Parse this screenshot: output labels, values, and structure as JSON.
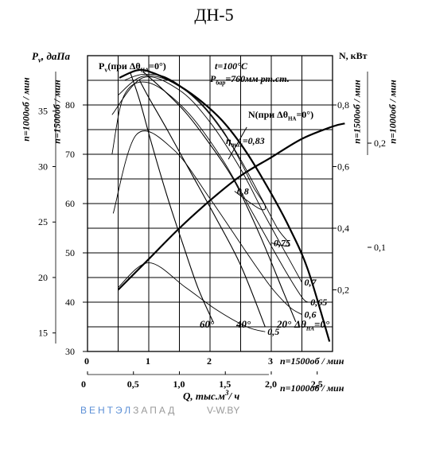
{
  "title": "ДН-5",
  "axes": {
    "pv_label": "P",
    "pv_sub": "v",
    "pv_unit": ", даПа",
    "pv_1000_label": "n=1000об / мин",
    "pv_1500_label": "n=1500об / мин",
    "n_label": "N, кВт",
    "n_1500_label": "n=1500об / мин",
    "n_1000_label": "n=1000об / мин",
    "q_label": "Q, тыс.м",
    "q_unit_sup": "3",
    "q_unit_rest": "/ ч",
    "x_1500_label": "n=1500об / мин",
    "x_1000_label": "n=1000об / мин"
  },
  "annotations": {
    "temp": "t=100°C",
    "pbar_pre": "P",
    "pbar_sub": "бар",
    "pbar_rest": "=760мм рт.ст.",
    "pv_curve_pre": "P",
    "pv_curve_sub": "v",
    "pv_curve_rest": "(при Δθ",
    "pv_curve_sub2": "НА",
    "pv_curve_end": "=0°)",
    "n_curve_pre": "N(при Δθ",
    "n_curve_sub": "НА",
    "n_curve_end": "=0°)",
    "eta_pre": "η",
    "eta_sub": "max",
    "eta_rest": "=0,83",
    "angle_60": "60°",
    "angle_40": "40°",
    "angle_20": "20°",
    "angle_0_pre": "Δθ",
    "angle_0_sub": "НА",
    "angle_0_rest": "=0°"
  },
  "watermark": {
    "brand_blue": "ВЕНТЭЛ",
    "brand_gray": "ЗАПАД",
    "site": "V-W.BY"
  },
  "colors": {
    "ink": "#000000",
    "watermark_blue": "#5b8fd6",
    "watermark_gray": "#9a9a9a"
  },
  "chart_data": {
    "type": "line",
    "title": "ДН-5",
    "x_axes": [
      {
        "label": "n=1500об / мин",
        "range": [
          0,
          4
        ],
        "ticks": [
          0,
          1,
          2,
          3,
          4
        ],
        "tick_labels": [
          "0",
          "1",
          "2",
          "3",
          ""
        ]
      },
      {
        "label": "n=1000об / мин",
        "range": [
          0,
          2.667
        ],
        "ticks": [
          0,
          0.5,
          1.0,
          1.5,
          2.0,
          2.5
        ],
        "tick_labels": [
          "0",
          "0,5",
          "1,0",
          "1,5",
          "2,0",
          "2,5"
        ]
      }
    ],
    "xlabel": "Q, тыс.м³/ч",
    "y_axes": [
      {
        "label": "Pv, даПа n=1500об / мин",
        "range": [
          30,
          90
        ],
        "ticks": [
          30,
          40,
          50,
          60,
          70,
          80
        ]
      },
      {
        "label": "Pv, даПа n=1000об / мин",
        "range": [
          13.33,
          40
        ],
        "ticks": [
          15,
          20,
          25,
          30,
          35
        ]
      },
      {
        "label": "N, кВт n=1500об / мин",
        "range": [
          0,
          0.96
        ],
        "ticks": [
          0.2,
          0.4,
          0.6,
          0.8
        ],
        "tick_labels": [
          "0,2",
          "0,4",
          "0,6",
          "0,8"
        ]
      },
      {
        "label": "N, кВт n=1000об / мин",
        "range": [
          0,
          0.284
        ],
        "ticks": [
          0.1,
          0.2
        ],
        "tick_labels": [
          "0,1",
          "0,2"
        ]
      }
    ],
    "grid": true,
    "series": [
      {
        "name": "Pv (при ΔθНА=0°)",
        "x": [
          0.52,
          0.8,
          1.0,
          1.4,
          1.8,
          2.2,
          2.6,
          3.0,
          3.3,
          3.6,
          3.95
        ],
        "y": [
          85.5,
          87.0,
          86.8,
          84.6,
          81.3,
          76.8,
          70.3,
          62.0,
          55.0,
          46.5,
          32.0
        ]
      },
      {
        "name": "N (при ΔθНА=0°)",
        "x": [
          0.5,
          1.0,
          1.5,
          2.0,
          2.5,
          3.0,
          3.5,
          4.0,
          4.2
        ],
        "y": [
          0.2,
          0.3,
          0.4,
          0.49,
          0.57,
          0.63,
          0.69,
          0.73,
          0.74
        ]
      },
      {
        "name": "20°",
        "x": [
          0.9,
          1.2,
          1.6,
          2.0,
          2.4,
          2.8,
          3.2,
          3.4
        ],
        "y": [
          86.8,
          83.5,
          78.5,
          72.0,
          64.5,
          54.0,
          42.0,
          36.0
        ]
      },
      {
        "name": "40°",
        "x": [
          0.85,
          1.0,
          1.3,
          1.7,
          2.1,
          2.5,
          2.9
        ],
        "y": [
          85.0,
          81.5,
          75.0,
          66.0,
          57.0,
          47.5,
          35.0
        ]
      },
      {
        "name": "60°",
        "x": [
          0.7,
          0.85,
          1.05,
          1.3,
          1.55,
          1.8,
          2.05
        ],
        "y": [
          86.5,
          81.0,
          72.0,
          61.5,
          52.0,
          43.0,
          36.0
        ]
      }
    ],
    "efficiency_contours": [
      {
        "label": "0,8",
        "x": [
          0.6,
          0.9,
          1.3,
          1.8,
          2.2,
          2.5,
          2.7,
          2.9,
          2.8,
          2.4
        ],
        "y": [
          85.0,
          86.2,
          85.5,
          81.0,
          75.0,
          68.5,
          63.5,
          59.5,
          59.0,
          62.5
        ]
      },
      {
        "label": "0,75",
        "x": [
          0.5,
          0.9,
          1.4,
          1.9,
          2.4,
          2.8,
          3.1,
          3.3,
          3.0
        ],
        "y": [
          82.0,
          85.8,
          84.5,
          79.5,
          71.0,
          62.0,
          55.0,
          51.5,
          52.0
        ]
      },
      {
        "label": "0,7",
        "x": [
          0.4,
          0.9,
          1.5,
          2.0,
          2.5,
          2.9,
          3.3,
          3.5
        ],
        "y": [
          78.0,
          85.5,
          83.0,
          76.5,
          67.0,
          57.5,
          48.5,
          44.0
        ]
      },
      {
        "label": "0,65",
        "x": [
          0.4,
          0.6,
          1.0,
          1.6,
          2.2,
          2.7,
          3.2,
          3.5,
          3.6
        ],
        "y": [
          70.0,
          82.0,
          84.5,
          79.0,
          69.0,
          58.0,
          47.0,
          41.0,
          40.0
        ]
      },
      {
        "label": "0,6",
        "x": [
          0.42,
          0.8,
          1.4,
          2.0,
          2.6,
          3.0,
          3.3,
          3.5
        ],
        "y": [
          58.0,
          74.0,
          71.0,
          61.0,
          50.0,
          43.0,
          39.0,
          37.5
        ]
      },
      {
        "label": "0,5",
        "x": [
          0.5,
          1.0,
          1.6,
          2.1,
          2.6,
          2.9
        ],
        "y": [
          43.0,
          48.0,
          43.0,
          38.5,
          35.0,
          34.0
        ]
      }
    ],
    "eta_max": {
      "label": "ηmax=0,83",
      "x": [
        2.3,
        2.6
      ],
      "y": [
        69.0,
        75.5
      ]
    },
    "curve_labels": [
      {
        "text": "Pv(при ΔθНА=0°)"
      },
      {
        "text": "N(при ΔθНА=0°)"
      },
      {
        "text": "ηmax=0,83"
      },
      {
        "text": "t=100°C"
      },
      {
        "text": "Pбар=760мм рт.ст."
      }
    ]
  }
}
